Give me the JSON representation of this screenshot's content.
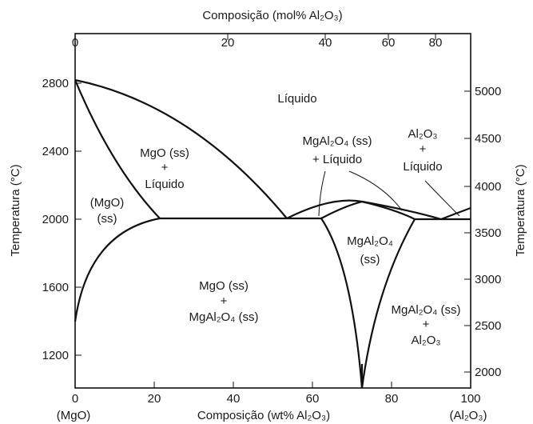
{
  "top_axis": {
    "label": "Composição (mol% Al₂O₃)",
    "ticks": [
      "0",
      "20",
      "40",
      "60",
      "80"
    ]
  },
  "bottom_axis": {
    "label": "Composição (wt% Al₂O₃)",
    "ticks": [
      "0",
      "20",
      "40",
      "60",
      "80",
      "100"
    ],
    "end_left": "(MgO)",
    "end_right": "(Al₂O₃)"
  },
  "left_axis": {
    "label": "Temperatura (°C)",
    "ticks": [
      "1200",
      "1600",
      "2000",
      "2400",
      "2800"
    ]
  },
  "right_axis": {
    "label": "Temperatura (°C)",
    "ticks": [
      "2000",
      "2500",
      "3000",
      "3500",
      "4000",
      "4500",
      "5000"
    ]
  },
  "regions": {
    "liquid": "Líquido",
    "mgo_liquid": [
      "MgO (ss)",
      "+",
      "Líquido"
    ],
    "mgo_ss": [
      "(MgO)",
      "(ss)"
    ],
    "spinel_liquid": [
      "MgAl₂O₄ (ss)",
      "+ Líquido"
    ],
    "al2o3_liquid": [
      "Al₂O₃",
      "+",
      "Líquido"
    ],
    "spinel_ss": [
      "MgAl₂O₄",
      "(ss)"
    ],
    "mgo_spinel": [
      "MgO (ss)",
      "+",
      "MgAl₂O₄ (ss)"
    ],
    "spinel_al2o3": [
      "MgAl₂O₄ (ss)",
      "+",
      "Al₂O₃"
    ]
  }
}
